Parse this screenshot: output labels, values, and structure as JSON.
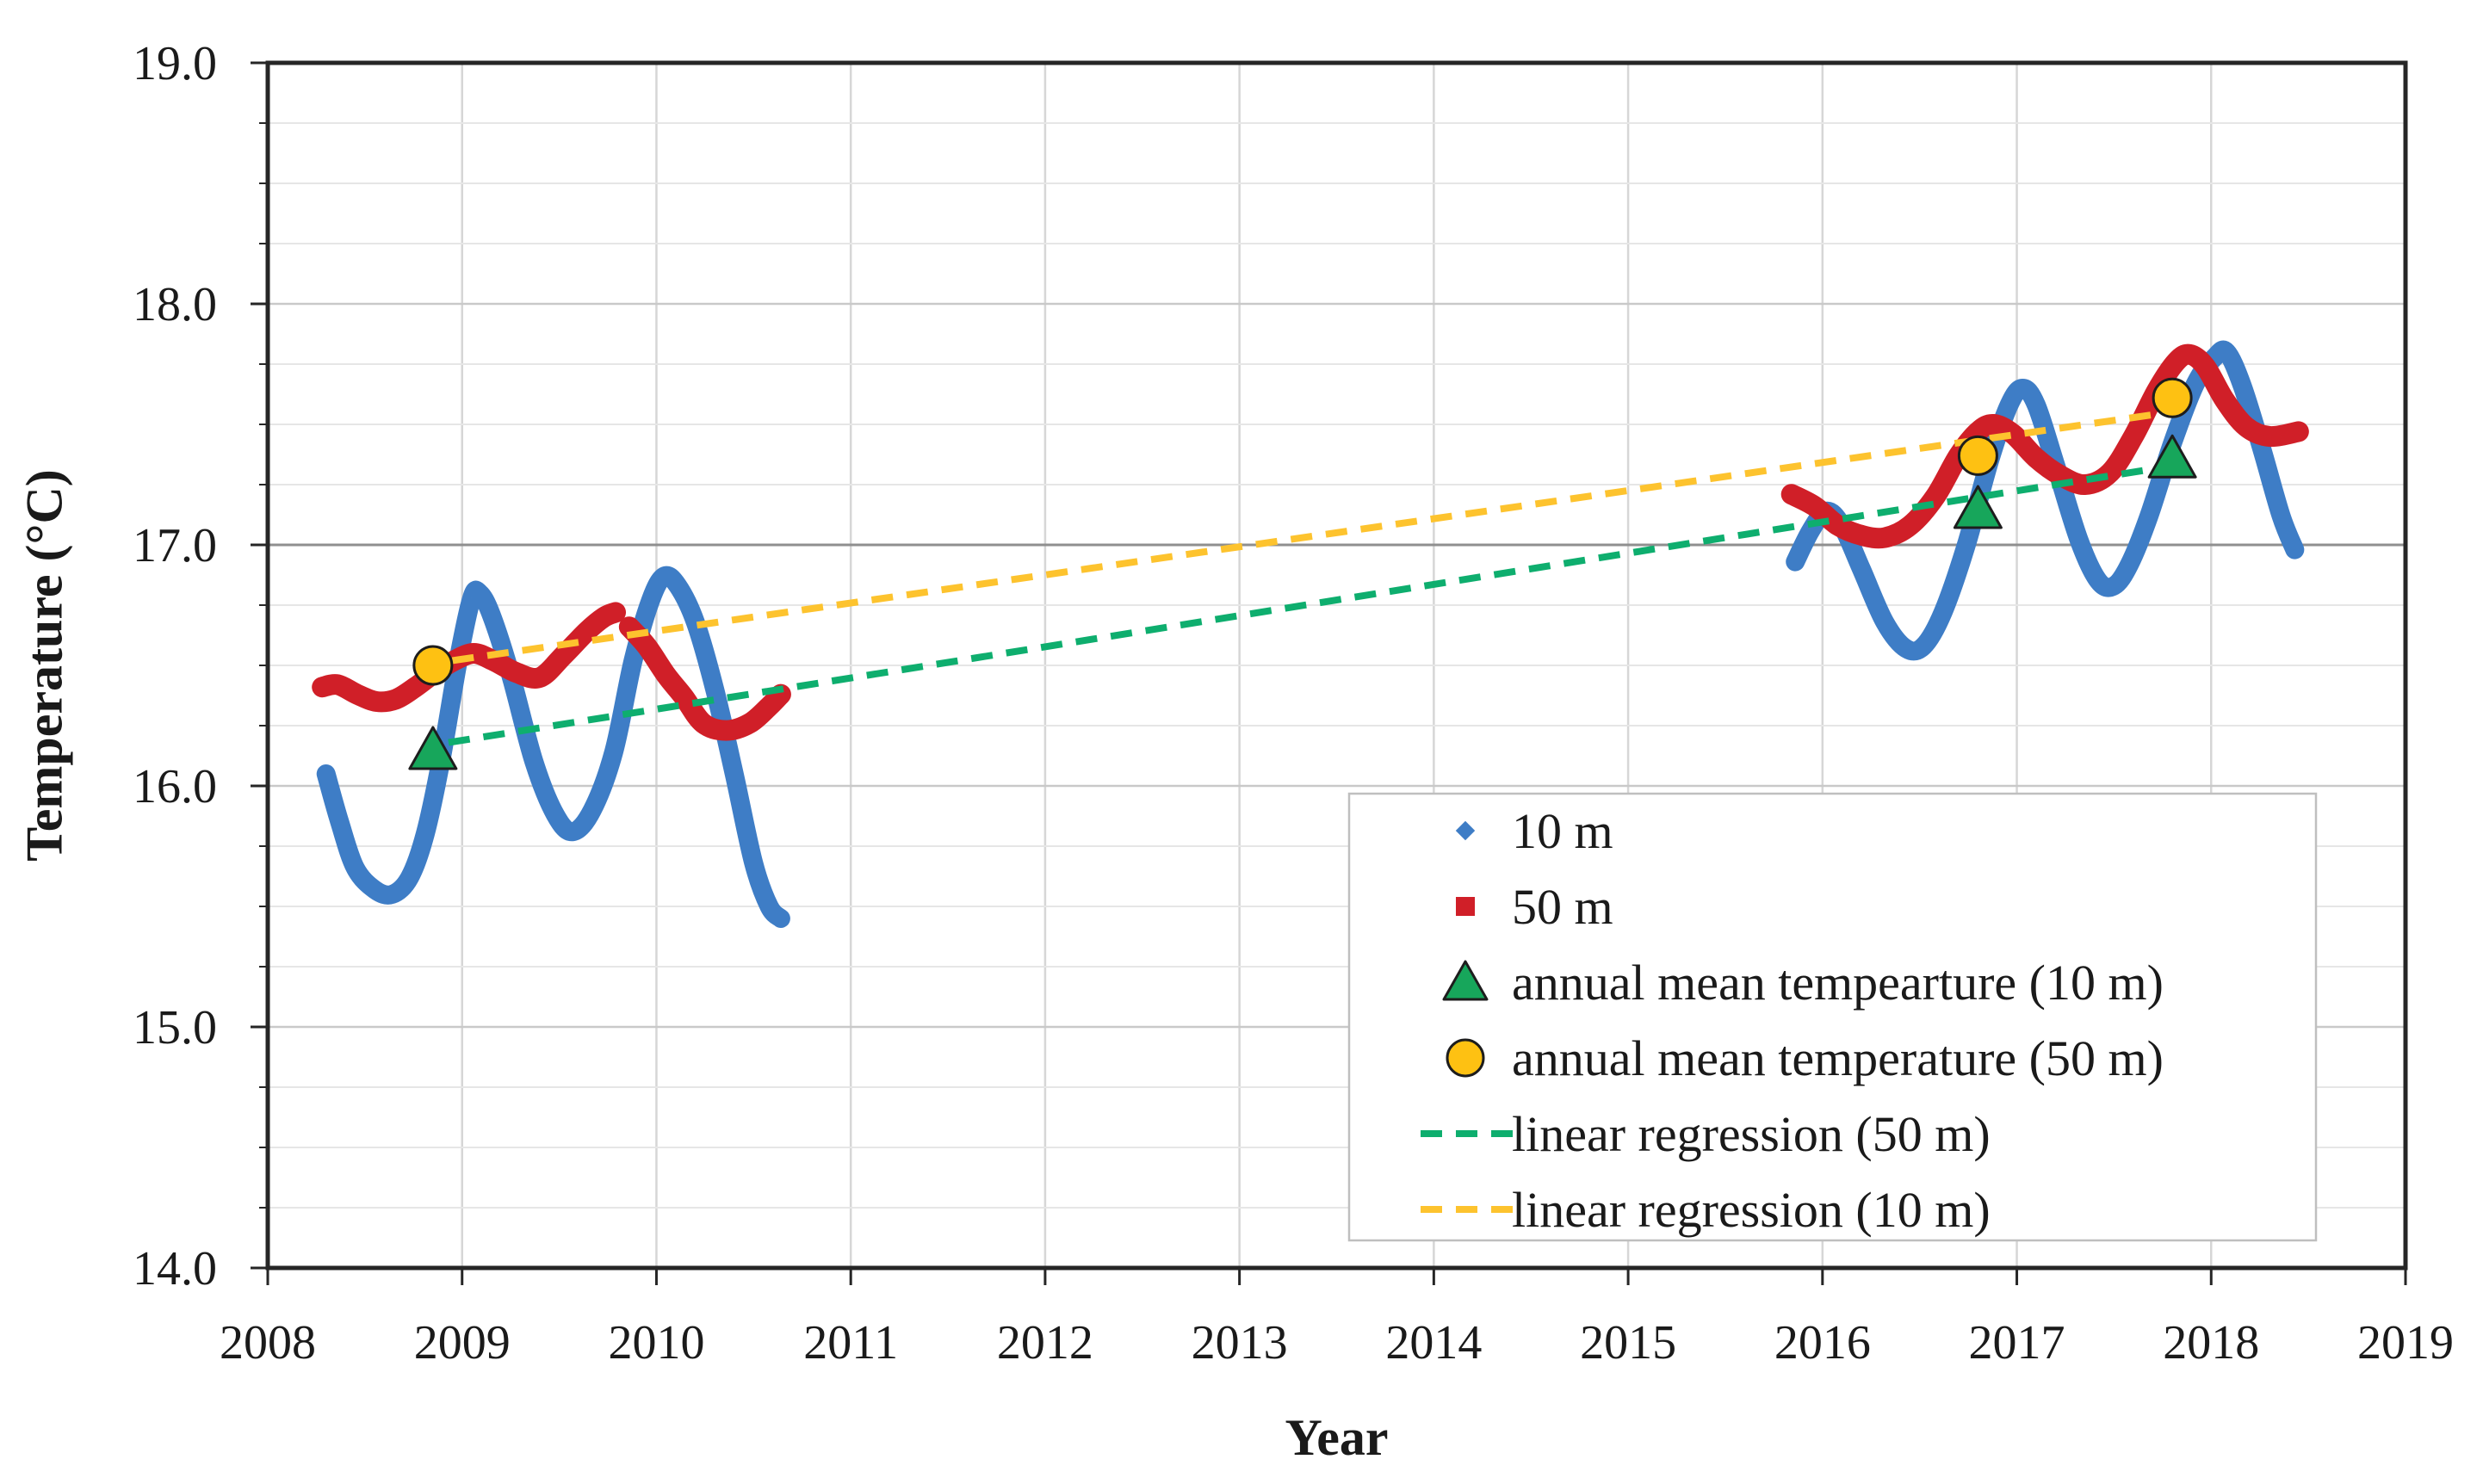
{
  "figure": {
    "x_axis_title": "Year",
    "y_axis_title": "Temperature (°C)"
  },
  "colors": {
    "series_10m_blue": "#3E7DC6",
    "series_50m_red": "#D01F28",
    "annual_mean_10m_green": "#17A65B",
    "annual_mean_50m_yellow": "#FEC112",
    "regression_50m_green": "#0EAE6E",
    "regression_10m_yellow": "#FDC32E",
    "marker_edge": "#1d1d1d",
    "axis_border": "#262626",
    "grid_minor": "#e6e6e6",
    "grid_major": "#c9c9c9",
    "grid_17_dark": "#8f8f8f",
    "grid_vertical": "#d6d6d6",
    "text": "#1a1a1a",
    "legend_border": "#bfbfbf",
    "legend_bg": "#ffffff"
  },
  "chart_data": {
    "type": "line",
    "title": "",
    "xlabel": "Year",
    "ylabel": "Temperature (°C)",
    "xlim": [
      2008,
      2019
    ],
    "ylim": [
      14.0,
      19.0
    ],
    "x_ticks": [
      "2008",
      "2009",
      "2010",
      "2011",
      "2012",
      "2013",
      "2014",
      "2015",
      "2016",
      "2017",
      "2018",
      "2019"
    ],
    "x_tick_values": [
      2008,
      2009,
      2010,
      2011,
      2012,
      2013,
      2014,
      2015,
      2016,
      2017,
      2018,
      2019
    ],
    "y_ticks": [
      "19.0",
      "18.0",
      "17.0",
      "16.0",
      "15.0",
      "14.0"
    ],
    "y_tick_values": [
      19.0,
      18.0,
      17.0,
      16.0,
      15.0,
      14.0
    ],
    "y_minor_step": 0.25,
    "grid": "on",
    "legend_position": "inside lower right",
    "series": [
      {
        "name": "10 m",
        "swatch": "diamond",
        "color": "#3E7DC6",
        "stroke_width": 22,
        "segments": [
          [
            [
              2008.3,
              16.05
            ],
            [
              2008.37,
              15.85
            ],
            [
              2008.45,
              15.66
            ],
            [
              2008.55,
              15.57
            ],
            [
              2008.64,
              15.55
            ],
            [
              2008.73,
              15.62
            ],
            [
              2008.81,
              15.8
            ],
            [
              2008.89,
              16.1
            ],
            [
              2008.98,
              16.52
            ],
            [
              2009.05,
              16.78
            ],
            [
              2009.09,
              16.8
            ],
            [
              2009.15,
              16.71
            ],
            [
              2009.25,
              16.46
            ],
            [
              2009.37,
              16.1
            ],
            [
              2009.48,
              15.88
            ],
            [
              2009.57,
              15.81
            ],
            [
              2009.67,
              15.9
            ],
            [
              2009.78,
              16.14
            ],
            [
              2009.88,
              16.52
            ],
            [
              2009.97,
              16.77
            ],
            [
              2010.04,
              16.87
            ],
            [
              2010.11,
              16.83
            ],
            [
              2010.2,
              16.68
            ],
            [
              2010.3,
              16.4
            ],
            [
              2010.4,
              16.05
            ],
            [
              2010.5,
              15.68
            ],
            [
              2010.58,
              15.5
            ],
            [
              2010.64,
              15.45
            ]
          ],
          [
            [
              2015.86,
              16.93
            ],
            [
              2015.94,
              17.06
            ],
            [
              2016.02,
              17.14
            ],
            [
              2016.1,
              17.08
            ],
            [
              2016.2,
              16.9
            ],
            [
              2016.32,
              16.68
            ],
            [
              2016.43,
              16.57
            ],
            [
              2016.52,
              16.58
            ],
            [
              2016.62,
              16.72
            ],
            [
              2016.74,
              17.0
            ],
            [
              2016.86,
              17.35
            ],
            [
              2016.96,
              17.58
            ],
            [
              2017.03,
              17.65
            ],
            [
              2017.1,
              17.58
            ],
            [
              2017.2,
              17.33
            ],
            [
              2017.32,
              17.02
            ],
            [
              2017.42,
              16.85
            ],
            [
              2017.5,
              16.83
            ],
            [
              2017.58,
              16.92
            ],
            [
              2017.68,
              17.12
            ],
            [
              2017.8,
              17.42
            ],
            [
              2017.92,
              17.67
            ],
            [
              2018.02,
              17.78
            ],
            [
              2018.08,
              17.8
            ],
            [
              2018.16,
              17.66
            ],
            [
              2018.26,
              17.4
            ],
            [
              2018.36,
              17.12
            ],
            [
              2018.43,
              16.98
            ]
          ]
        ]
      },
      {
        "name": "50 m",
        "swatch": "square",
        "color": "#D01F28",
        "stroke_width": 24,
        "segments": [
          [
            [
              2008.28,
              16.41
            ],
            [
              2008.36,
              16.42
            ],
            [
              2008.46,
              16.38
            ],
            [
              2008.56,
              16.35
            ],
            [
              2008.66,
              16.36
            ],
            [
              2008.76,
              16.41
            ],
            [
              2008.86,
              16.47
            ],
            [
              2008.96,
              16.52
            ],
            [
              2009.06,
              16.55
            ],
            [
              2009.16,
              16.52
            ],
            [
              2009.28,
              16.47
            ],
            [
              2009.4,
              16.45
            ],
            [
              2009.52,
              16.54
            ],
            [
              2009.64,
              16.64
            ],
            [
              2009.73,
              16.7
            ],
            [
              2009.79,
              16.72
            ]
          ],
          [
            [
              2009.86,
              16.66
            ],
            [
              2009.95,
              16.58
            ],
            [
              2010.05,
              16.46
            ],
            [
              2010.14,
              16.37
            ],
            [
              2010.24,
              16.26
            ],
            [
              2010.36,
              16.23
            ],
            [
              2010.48,
              16.26
            ],
            [
              2010.58,
              16.33
            ],
            [
              2010.64,
              16.38
            ]
          ],
          [
            [
              2015.84,
              17.21
            ],
            [
              2015.96,
              17.16
            ],
            [
              2016.08,
              17.08
            ],
            [
              2016.2,
              17.04
            ],
            [
              2016.32,
              17.03
            ],
            [
              2016.45,
              17.08
            ],
            [
              2016.58,
              17.2
            ],
            [
              2016.7,
              17.37
            ],
            [
              2016.8,
              17.47
            ],
            [
              2016.88,
              17.5
            ],
            [
              2016.98,
              17.46
            ],
            [
              2017.1,
              17.36
            ],
            [
              2017.22,
              17.29
            ],
            [
              2017.35,
              17.25
            ],
            [
              2017.48,
              17.3
            ],
            [
              2017.6,
              17.45
            ],
            [
              2017.72,
              17.64
            ],
            [
              2017.82,
              17.76
            ],
            [
              2017.89,
              17.79
            ],
            [
              2017.97,
              17.74
            ],
            [
              2018.07,
              17.6
            ],
            [
              2018.18,
              17.49
            ],
            [
              2018.3,
              17.45
            ],
            [
              2018.45,
              17.47
            ]
          ]
        ]
      },
      {
        "name": "annual mean tempearture (10 m)",
        "swatch": "triangle",
        "color": "#17A65B",
        "points": [
          [
            2008.85,
            16.15
          ],
          [
            2016.8,
            17.15
          ],
          [
            2017.8,
            17.36
          ]
        ]
      },
      {
        "name": "annual mean temperature (50 m)",
        "swatch": "circle",
        "color": "#FEC112",
        "points": [
          [
            2008.85,
            16.5
          ],
          [
            2016.8,
            17.37
          ],
          [
            2017.8,
            17.61
          ]
        ]
      },
      {
        "name": "linear regression (50 m)",
        "swatch": "dash",
        "color": "#0EAE6E",
        "points": [
          [
            2008.93,
            16.18
          ],
          [
            2017.74,
            17.32
          ]
        ]
      },
      {
        "name": "linear regression (10 m)",
        "swatch": "dash",
        "color": "#FDC32E",
        "points": [
          [
            2008.95,
            16.52
          ],
          [
            2017.7,
            17.54
          ]
        ]
      }
    ]
  }
}
